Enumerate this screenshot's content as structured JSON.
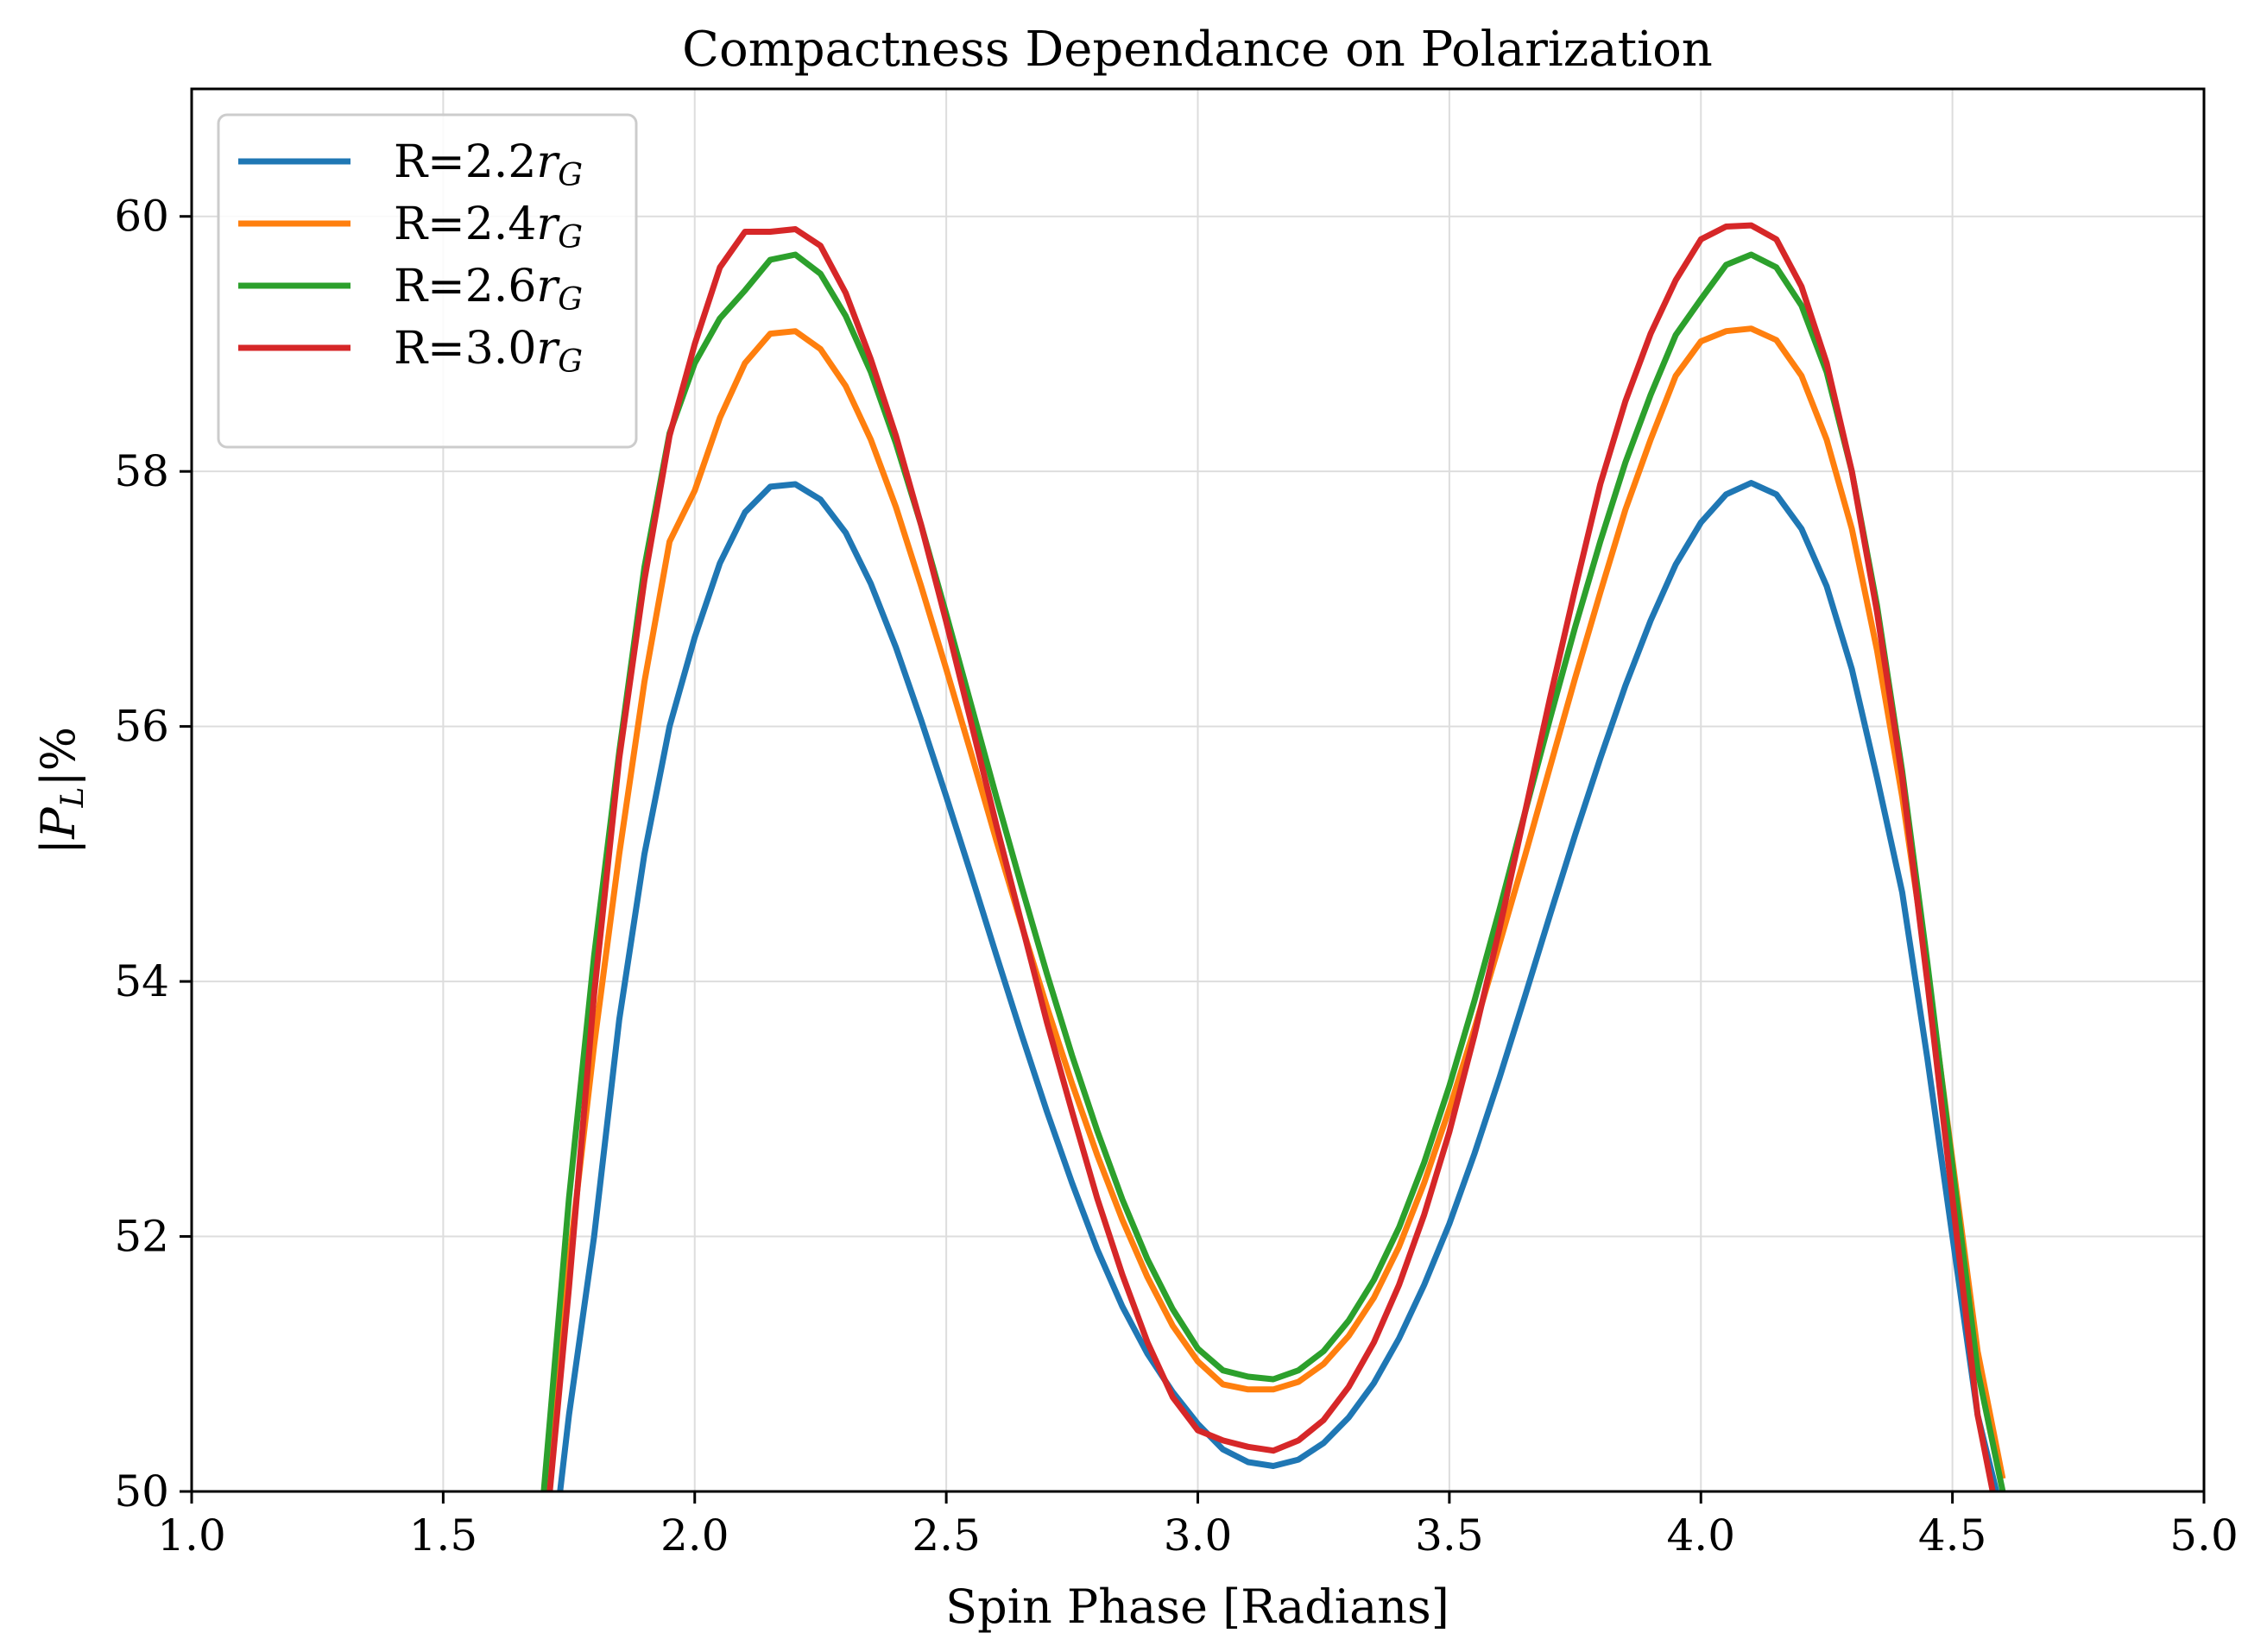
{
  "chart_data": {
    "type": "line",
    "title": "Compactness Dependance on Polarization",
    "xlabel": "Spin Phase [Radians]",
    "ylabel": {
      "abs": "|",
      "main": "P",
      "sub": "L",
      "suffix": "|%"
    },
    "xlim": [
      1.0,
      5.0
    ],
    "ylim": [
      50,
      61
    ],
    "xticks": [
      "1.0",
      "1.5",
      "2.0",
      "2.5",
      "3.0",
      "3.5",
      "4.0",
      "4.5",
      "5.0"
    ],
    "yticks": [
      "50",
      "52",
      "54",
      "56",
      "58",
      "60"
    ],
    "grid": true,
    "legend_position": "upper-left",
    "x": [
      1.7,
      1.75,
      1.8,
      1.85,
      1.9,
      1.95,
      2.0,
      2.05,
      2.1,
      2.15,
      2.2,
      2.25,
      2.3,
      2.35,
      2.4,
      2.45,
      2.5,
      2.55,
      2.6,
      2.65,
      2.7,
      2.75,
      2.8,
      2.85,
      2.9,
      2.95,
      3.0,
      3.05,
      3.1,
      3.15,
      3.2,
      3.25,
      3.3,
      3.35,
      3.4,
      3.45,
      3.5,
      3.55,
      3.6,
      3.65,
      3.7,
      3.75,
      3.8,
      3.85,
      3.9,
      3.95,
      4.0,
      4.05,
      4.1,
      4.15,
      4.2,
      4.25,
      4.3,
      4.35,
      4.4,
      4.45,
      4.5,
      4.55,
      4.6
    ],
    "series": [
      {
        "name": "R=2.2",
        "name_italic": "r",
        "name_sub": "G",
        "color": "#1f77b4",
        "values": [
          48.9,
          50.6,
          52.0,
          53.7,
          55.0,
          56.0,
          56.7,
          57.28,
          57.68,
          57.88,
          57.9,
          57.78,
          57.52,
          57.12,
          56.62,
          56.05,
          55.45,
          54.83,
          54.2,
          53.58,
          52.98,
          52.42,
          51.9,
          51.45,
          51.08,
          50.78,
          50.53,
          50.33,
          50.23,
          50.2,
          50.25,
          50.38,
          50.58,
          50.85,
          51.2,
          51.62,
          52.1,
          52.65,
          53.25,
          53.88,
          54.52,
          55.15,
          55.75,
          56.32,
          56.83,
          57.27,
          57.6,
          57.82,
          57.91,
          57.82,
          57.55,
          57.1,
          56.45,
          55.6,
          54.7,
          53.4,
          52.0,
          50.6,
          49.8
        ]
      },
      {
        "name": "R=2.4",
        "name_italic": "r",
        "name_sub": "G",
        "color": "#ff7f0e",
        "values": [
          49.9,
          51.8,
          53.5,
          55.0,
          56.35,
          57.45,
          57.85,
          58.42,
          58.85,
          59.08,
          59.1,
          58.96,
          58.67,
          58.25,
          57.72,
          57.1,
          56.45,
          55.78,
          55.1,
          54.44,
          53.8,
          53.2,
          52.64,
          52.13,
          51.68,
          51.3,
          51.02,
          50.84,
          50.8,
          50.8,
          50.86,
          51.0,
          51.22,
          51.52,
          51.92,
          52.42,
          53.0,
          53.63,
          54.3,
          54.98,
          55.68,
          56.38,
          57.05,
          57.7,
          58.25,
          58.75,
          59.02,
          59.1,
          59.12,
          59.03,
          58.75,
          58.25,
          57.55,
          56.6,
          55.45,
          54.1,
          52.6,
          51.1,
          50.1
        ]
      },
      {
        "name": "R=2.6",
        "name_italic": "r",
        "name_sub": "G",
        "color": "#2ca02c",
        "values": [
          50.0,
          52.3,
          54.2,
          55.8,
          57.25,
          58.3,
          58.85,
          59.2,
          59.42,
          59.66,
          59.7,
          59.55,
          59.22,
          58.78,
          58.22,
          57.58,
          56.88,
          56.16,
          55.44,
          54.74,
          54.06,
          53.42,
          52.83,
          52.29,
          51.82,
          51.43,
          51.12,
          50.95,
          50.9,
          50.88,
          50.95,
          51.1,
          51.34,
          51.66,
          52.07,
          52.58,
          53.18,
          53.85,
          54.57,
          55.32,
          56.06,
          56.78,
          57.45,
          58.07,
          58.6,
          59.07,
          59.35,
          59.62,
          59.7,
          59.6,
          59.3,
          58.78,
          58.0,
          56.95,
          55.65,
          54.15,
          52.55,
          50.95,
          50.0
        ]
      },
      {
        "name": "R=3.0",
        "name_italic": "r",
        "name_sub": "G",
        "color": "#d62728",
        "values": [
          49.5,
          51.6,
          53.9,
          55.75,
          57.15,
          58.28,
          59.0,
          59.6,
          59.88,
          59.88,
          59.9,
          59.77,
          59.4,
          58.88,
          58.28,
          57.58,
          56.82,
          56.02,
          55.22,
          54.45,
          53.68,
          52.98,
          52.3,
          51.7,
          51.17,
          50.74,
          50.48,
          50.4,
          50.35,
          50.32,
          50.4,
          50.56,
          50.82,
          51.17,
          51.62,
          52.17,
          52.82,
          53.58,
          54.42,
          55.32,
          56.22,
          57.08,
          57.9,
          58.55,
          59.08,
          59.5,
          59.82,
          59.92,
          59.93,
          59.82,
          59.45,
          58.85,
          58.0,
          56.9,
          55.6,
          54.0,
          52.3,
          50.6,
          49.6
        ]
      }
    ]
  }
}
